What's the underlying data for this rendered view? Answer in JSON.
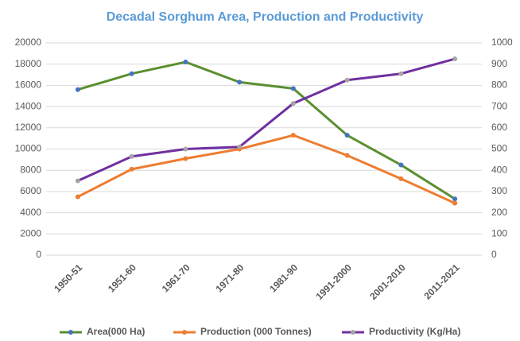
{
  "chart_data": {
    "type": "line",
    "title": "Decadal Sorghum Area, Production and Productivity",
    "categories": [
      "1950-51",
      "1951-60",
      "1961-70",
      "1971-80",
      "1981-90",
      "1991-2000",
      "2001-2010",
      "2011-2021"
    ],
    "series": [
      {
        "name": "Area(000 Ha)",
        "color": "#5a8f2f",
        "marker_color": "#4472c4",
        "values": [
          15600,
          17100,
          18200,
          16300,
          15700,
          11300,
          8500,
          5300
        ]
      },
      {
        "name": "Production (000 Tonnes)",
        "color": "#ed7d31",
        "marker_color": "#ed7d31",
        "values": [
          5500,
          8100,
          9100,
          10000,
          11300,
          9400,
          7200,
          4900
        ]
      },
      {
        "name": "Productivity (Kg/Ha)",
        "color": "#7030a0",
        "marker_color": "#a5a5a5",
        "axis": "y2",
        "values": [
          350,
          465,
          500,
          510,
          715,
          825,
          855,
          925
        ]
      }
    ],
    "ylim": [
      0,
      20000
    ],
    "yticks": [
      0,
      2000,
      4000,
      6000,
      8000,
      10000,
      12000,
      14000,
      16000,
      18000,
      20000
    ],
    "y2lim": [
      0,
      1000
    ],
    "y2ticks": [
      0,
      100,
      200,
      300,
      400,
      500,
      600,
      700,
      800,
      900,
      1000
    ],
    "grid": true,
    "legend": "bottom"
  }
}
